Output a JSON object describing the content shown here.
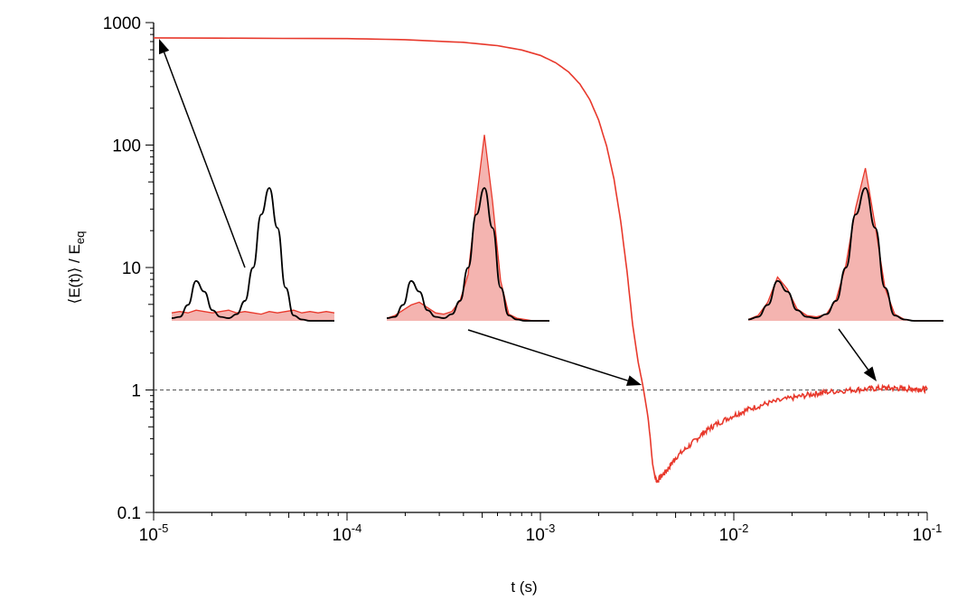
{
  "chart_data": {
    "type": "line",
    "title": "",
    "xlabel": "t (s)",
    "ylabel": "⟨E(t)⟩ / E",
    "ylabel_subscript": "eq",
    "x_scale": "log",
    "y_scale": "log",
    "xlim": [
      1e-05,
      0.1
    ],
    "ylim": [
      0.1,
      1000
    ],
    "grid": false,
    "legend": "none",
    "x_ticks": [
      {
        "value": 1e-05,
        "mantissa": "10",
        "exponent": "-5"
      },
      {
        "value": 0.0001,
        "mantissa": "10",
        "exponent": "-4"
      },
      {
        "value": 0.001,
        "mantissa": "10",
        "exponent": "-3"
      },
      {
        "value": 0.01,
        "mantissa": "10",
        "exponent": "-2"
      },
      {
        "value": 0.1,
        "mantissa": "10",
        "exponent": "-1"
      }
    ],
    "y_ticks": [
      {
        "value": 0.1,
        "label": "0.1"
      },
      {
        "value": 1,
        "label": "1"
      },
      {
        "value": 10,
        "label": "10"
      },
      {
        "value": 100,
        "label": "100"
      },
      {
        "value": 1000,
        "label": "1000"
      }
    ],
    "reference_line": {
      "y": 1,
      "style": "dashed",
      "color": "#555555"
    },
    "series": [
      {
        "color": "#e8392c",
        "x": [
          1e-05,
          0.0001,
          0.0002,
          0.0004,
          0.0006,
          0.0008,
          0.001,
          0.0012,
          0.0014,
          0.0016,
          0.0018,
          0.002,
          0.0022,
          0.0024,
          0.0026,
          0.0028,
          0.003,
          0.0032,
          0.0034,
          0.0036,
          0.0037,
          0.0038,
          0.0039,
          0.004,
          0.0045,
          0.005,
          0.006,
          0.007,
          0.008,
          0.01,
          0.012,
          0.015,
          0.02,
          0.025,
          0.03,
          0.04,
          0.05,
          0.06,
          0.07,
          0.08,
          0.09,
          0.1
        ],
        "y": [
          750,
          740,
          725,
          690,
          648,
          598,
          540,
          470,
          395,
          315,
          235,
          160,
          98,
          53,
          24,
          9.5,
          3.4,
          1.7,
          1.05,
          0.6,
          0.4,
          0.25,
          0.2,
          0.18,
          0.22,
          0.28,
          0.36,
          0.45,
          0.52,
          0.62,
          0.7,
          0.78,
          0.86,
          0.92,
          0.96,
          1.0,
          1.02,
          1.04,
          1.03,
          1.02,
          1.02,
          1.01
        ]
      }
    ],
    "insets": [
      {
        "name": "inset-early",
        "x": [
          0,
          0.05,
          0.1,
          0.15,
          0.2,
          0.25,
          0.3,
          0.35,
          0.4,
          0.45,
          0.5,
          0.55,
          0.6,
          0.65,
          0.7,
          0.75,
          0.8,
          0.85,
          0.9,
          0.95,
          1
        ],
        "model": [
          0.02,
          0.03,
          0.12,
          0.3,
          0.22,
          0.08,
          0.03,
          0.02,
          0.05,
          0.15,
          0.4,
          0.8,
          1.0,
          0.7,
          0.25,
          0.04,
          0.01,
          0,
          0,
          0,
          0
        ],
        "measured": [
          0.06,
          0.07,
          0.06,
          0.08,
          0.07,
          0.06,
          0.07,
          0.08,
          0.06,
          0.07,
          0.06,
          0.05,
          0.07,
          0.06,
          0.07,
          0.08,
          0.06,
          0.07,
          0.06,
          0.07,
          0.06
        ]
      },
      {
        "name": "inset-middle",
        "x": [
          0,
          0.05,
          0.1,
          0.15,
          0.2,
          0.25,
          0.3,
          0.35,
          0.4,
          0.45,
          0.5,
          0.55,
          0.6,
          0.65,
          0.7,
          0.75,
          0.8,
          0.85,
          0.9,
          0.95,
          1
        ],
        "model": [
          0.02,
          0.03,
          0.12,
          0.3,
          0.22,
          0.08,
          0.03,
          0.02,
          0.05,
          0.15,
          0.4,
          0.8,
          1.0,
          0.7,
          0.25,
          0.04,
          0.01,
          0,
          0,
          0,
          0
        ],
        "measured": [
          0.02,
          0.04,
          0.08,
          0.12,
          0.14,
          0.1,
          0.06,
          0.05,
          0.07,
          0.15,
          0.35,
          0.9,
          1.4,
          0.9,
          0.3,
          0.05,
          0.02,
          0.01,
          0,
          0,
          0
        ]
      },
      {
        "name": "inset-late",
        "x": [
          0,
          0.05,
          0.1,
          0.15,
          0.2,
          0.25,
          0.3,
          0.35,
          0.4,
          0.45,
          0.5,
          0.55,
          0.6,
          0.65,
          0.7,
          0.75,
          0.8,
          0.85,
          0.9,
          0.95,
          1
        ],
        "model": [
          0.01,
          0.03,
          0.12,
          0.3,
          0.22,
          0.08,
          0.03,
          0.02,
          0.05,
          0.15,
          0.4,
          0.8,
          1.0,
          0.7,
          0.25,
          0.04,
          0.01,
          0,
          0,
          0,
          0
        ],
        "measured": [
          0.01,
          0.04,
          0.14,
          0.33,
          0.24,
          0.09,
          0.04,
          0.03,
          0.05,
          0.16,
          0.42,
          0.85,
          1.15,
          0.72,
          0.25,
          0.05,
          0.01,
          0,
          0,
          0,
          0
        ]
      }
    ],
    "colors": {
      "curve": "#e8392c",
      "fill": "#f4b4b0",
      "model": "#000000",
      "reference": "#555555"
    }
  }
}
